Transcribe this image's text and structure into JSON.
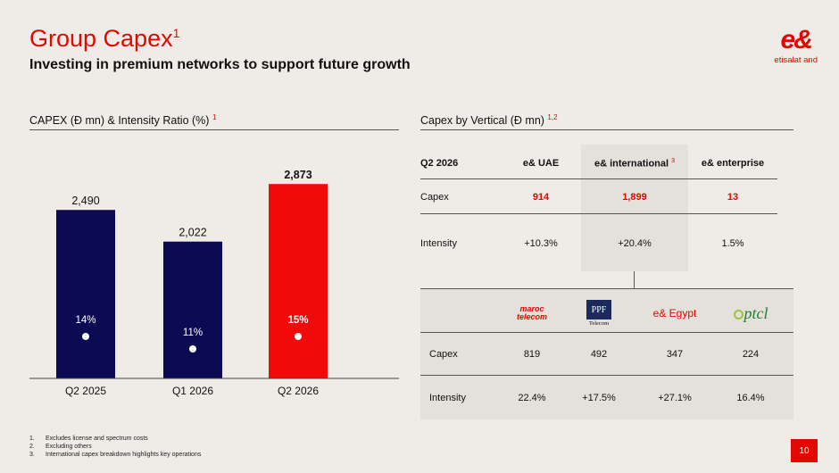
{
  "header": {
    "title": "Group Capex",
    "title_sup": "1",
    "subtitle": "Investing in premium networks to support future growth",
    "logo_mark": "e&",
    "logo_text": "etisalat and"
  },
  "left_section": {
    "heading": "CAPEX (Đ mn) & Intensity Ratio (%)",
    "heading_sup": "1"
  },
  "right_section": {
    "heading": "Capex by Vertical (Đ mn)",
    "heading_sup": "1,2"
  },
  "chart_data": {
    "type": "bar",
    "categories": [
      "Q2 2025",
      "Q1 2026",
      "Q2 2026"
    ],
    "values": [
      2490,
      2022,
      2873
    ],
    "value_labels": [
      "2,490",
      "2,022",
      "2,873"
    ],
    "intensity_labels": [
      "14%",
      "11%",
      "15%"
    ],
    "intensity": [
      14,
      11,
      15
    ],
    "colors": [
      "#0b0a52",
      "#0b0a52",
      "#f20a0a"
    ],
    "ylim": [
      0,
      3100
    ]
  },
  "vertical_table": {
    "period": "Q2 2026",
    "columns": [
      "e& UAE",
      "e& international",
      "e& enterprise"
    ],
    "intl_sup": "3",
    "rows": [
      {
        "label": "Capex",
        "values": [
          "914",
          "1,899",
          "13"
        ]
      },
      {
        "label": "Intensity",
        "values": [
          "+10.3%",
          "+20.4%",
          "1.5%"
        ]
      }
    ]
  },
  "intl_table": {
    "logos": {
      "maroc_line1": "maroc",
      "maroc_line2": "telecom",
      "ppf": "PPF",
      "ppf_sub": "Telecom",
      "egypt": "e& Egypt",
      "ptcl": "ptcl"
    },
    "rows": [
      {
        "label": "Capex",
        "values": [
          "819",
          "492",
          "347",
          "224"
        ]
      },
      {
        "label": "Intensity",
        "values": [
          "22.4%",
          "+17.5%",
          "+27.1%",
          "16.4%"
        ]
      }
    ]
  },
  "footnotes": [
    {
      "num": "1.",
      "text": "Excludes license and spectrum costs"
    },
    {
      "num": "2.",
      "text": "Excluding others"
    },
    {
      "num": "3.",
      "text": "International capex breakdown highlights key operations"
    }
  ],
  "page_number": "10"
}
